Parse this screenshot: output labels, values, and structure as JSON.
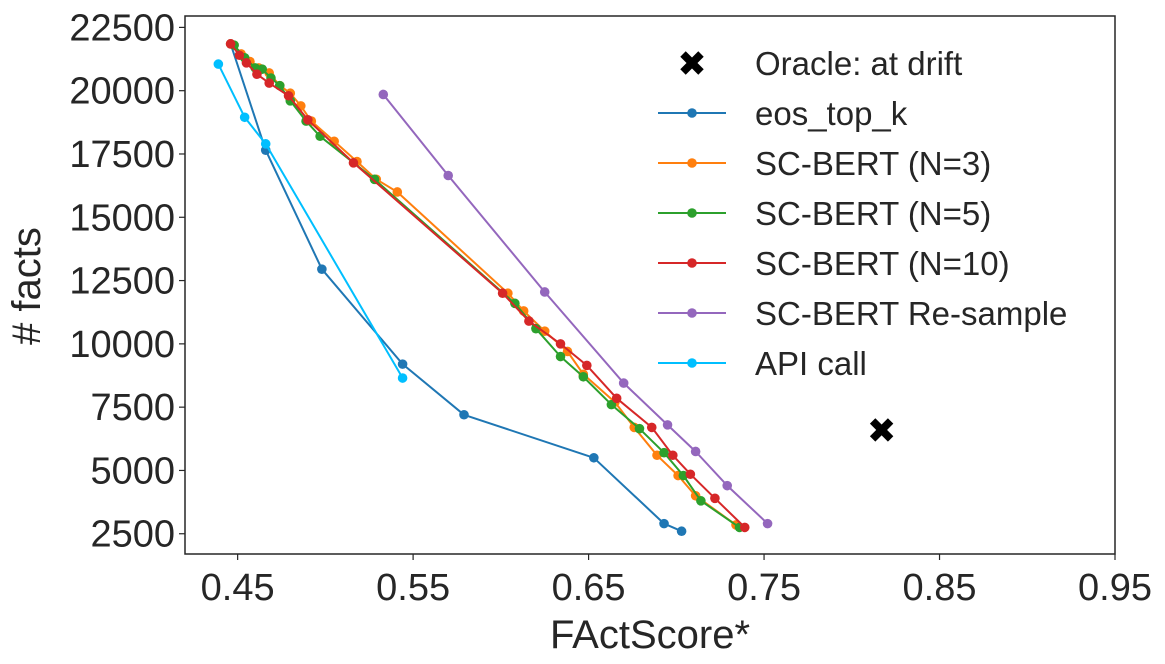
{
  "chart_data": {
    "type": "line",
    "title": "",
    "xlabel": "FActScore*",
    "ylabel": "# facts",
    "xlim": [
      0.42,
      0.95
    ],
    "ylim": [
      1700,
      22950
    ],
    "xticks": [
      0.45,
      0.55,
      0.65,
      0.75,
      0.85,
      0.95
    ],
    "xtick_labels": [
      "0.45",
      "0.55",
      "0.65",
      "0.75",
      "0.85",
      "0.95"
    ],
    "yticks": [
      2500,
      5000,
      7500,
      10000,
      12500,
      15000,
      17500,
      20000,
      22500
    ],
    "ytick_labels": [
      "2500",
      "5000",
      "7500",
      "10000",
      "12500",
      "15000",
      "17500",
      "20000",
      "22500"
    ],
    "grid": false,
    "legend_position": "top-right",
    "series": [
      {
        "name": "eos_top_k",
        "color": "#1f77b4",
        "x": [
          0.446,
          0.466,
          0.498,
          0.544,
          0.579,
          0.653,
          0.693,
          0.703
        ],
        "y": [
          21850,
          17650,
          12950,
          9200,
          7200,
          5500,
          2900,
          2600
        ]
      },
      {
        "name": "SC-BERT (N=3)",
        "color": "#ff7f0e",
        "x": [
          0.446,
          0.452,
          0.457,
          0.462,
          0.468,
          0.474,
          0.48,
          0.486,
          0.492,
          0.505,
          0.518,
          0.529,
          0.541,
          0.604,
          0.613,
          0.625,
          0.638,
          0.647,
          0.665,
          0.676,
          0.689,
          0.701,
          0.711,
          0.734
        ],
        "y": [
          21850,
          21450,
          21150,
          20900,
          20700,
          20200,
          19900,
          19400,
          18800,
          18000,
          17200,
          16500,
          16000,
          12000,
          11300,
          10500,
          9700,
          8800,
          7700,
          6700,
          5600,
          4800,
          4000,
          2850
        ]
      },
      {
        "name": "SC-BERT (N=5)",
        "color": "#2ca02c",
        "x": [
          0.448,
          0.454,
          0.46,
          0.464,
          0.469,
          0.474,
          0.48,
          0.489,
          0.497,
          0.528,
          0.608,
          0.62,
          0.634,
          0.647,
          0.663,
          0.679,
          0.693,
          0.704,
          0.714,
          0.736
        ],
        "y": [
          21800,
          21300,
          20900,
          20850,
          20500,
          20200,
          19600,
          18800,
          18200,
          16500,
          11600,
          10600,
          9500,
          8700,
          7600,
          6650,
          5700,
          4800,
          3800,
          2750
        ]
      },
      {
        "name": "SC-BERT (N=10)",
        "color": "#d62728",
        "x": [
          0.446,
          0.451,
          0.455,
          0.461,
          0.468,
          0.479,
          0.49,
          0.516,
          0.601,
          0.616,
          0.634,
          0.649,
          0.666,
          0.686,
          0.698,
          0.708,
          0.722,
          0.739
        ],
        "y": [
          21850,
          21400,
          21100,
          20650,
          20300,
          19800,
          18850,
          17150,
          12000,
          10900,
          10000,
          9150,
          7850,
          6700,
          5600,
          4850,
          3900,
          2750
        ]
      },
      {
        "name": "SC-BERT Re-sample",
        "color": "#9467bd",
        "x": [
          0.533,
          0.57,
          0.625,
          0.67,
          0.695,
          0.711,
          0.729,
          0.752
        ],
        "y": [
          19850,
          16650,
          12050,
          8450,
          6800,
          5750,
          4400,
          2900
        ]
      },
      {
        "name": "API call",
        "color": "#00bfff",
        "x": [
          0.439,
          0.454,
          0.466,
          0.544
        ],
        "y": [
          21050,
          18950,
          17900,
          8650
        ]
      }
    ],
    "oracle": {
      "name": "Oracle: at drift",
      "marker": "X",
      "color": "#000000",
      "x": 0.817,
      "y": 6600
    }
  }
}
